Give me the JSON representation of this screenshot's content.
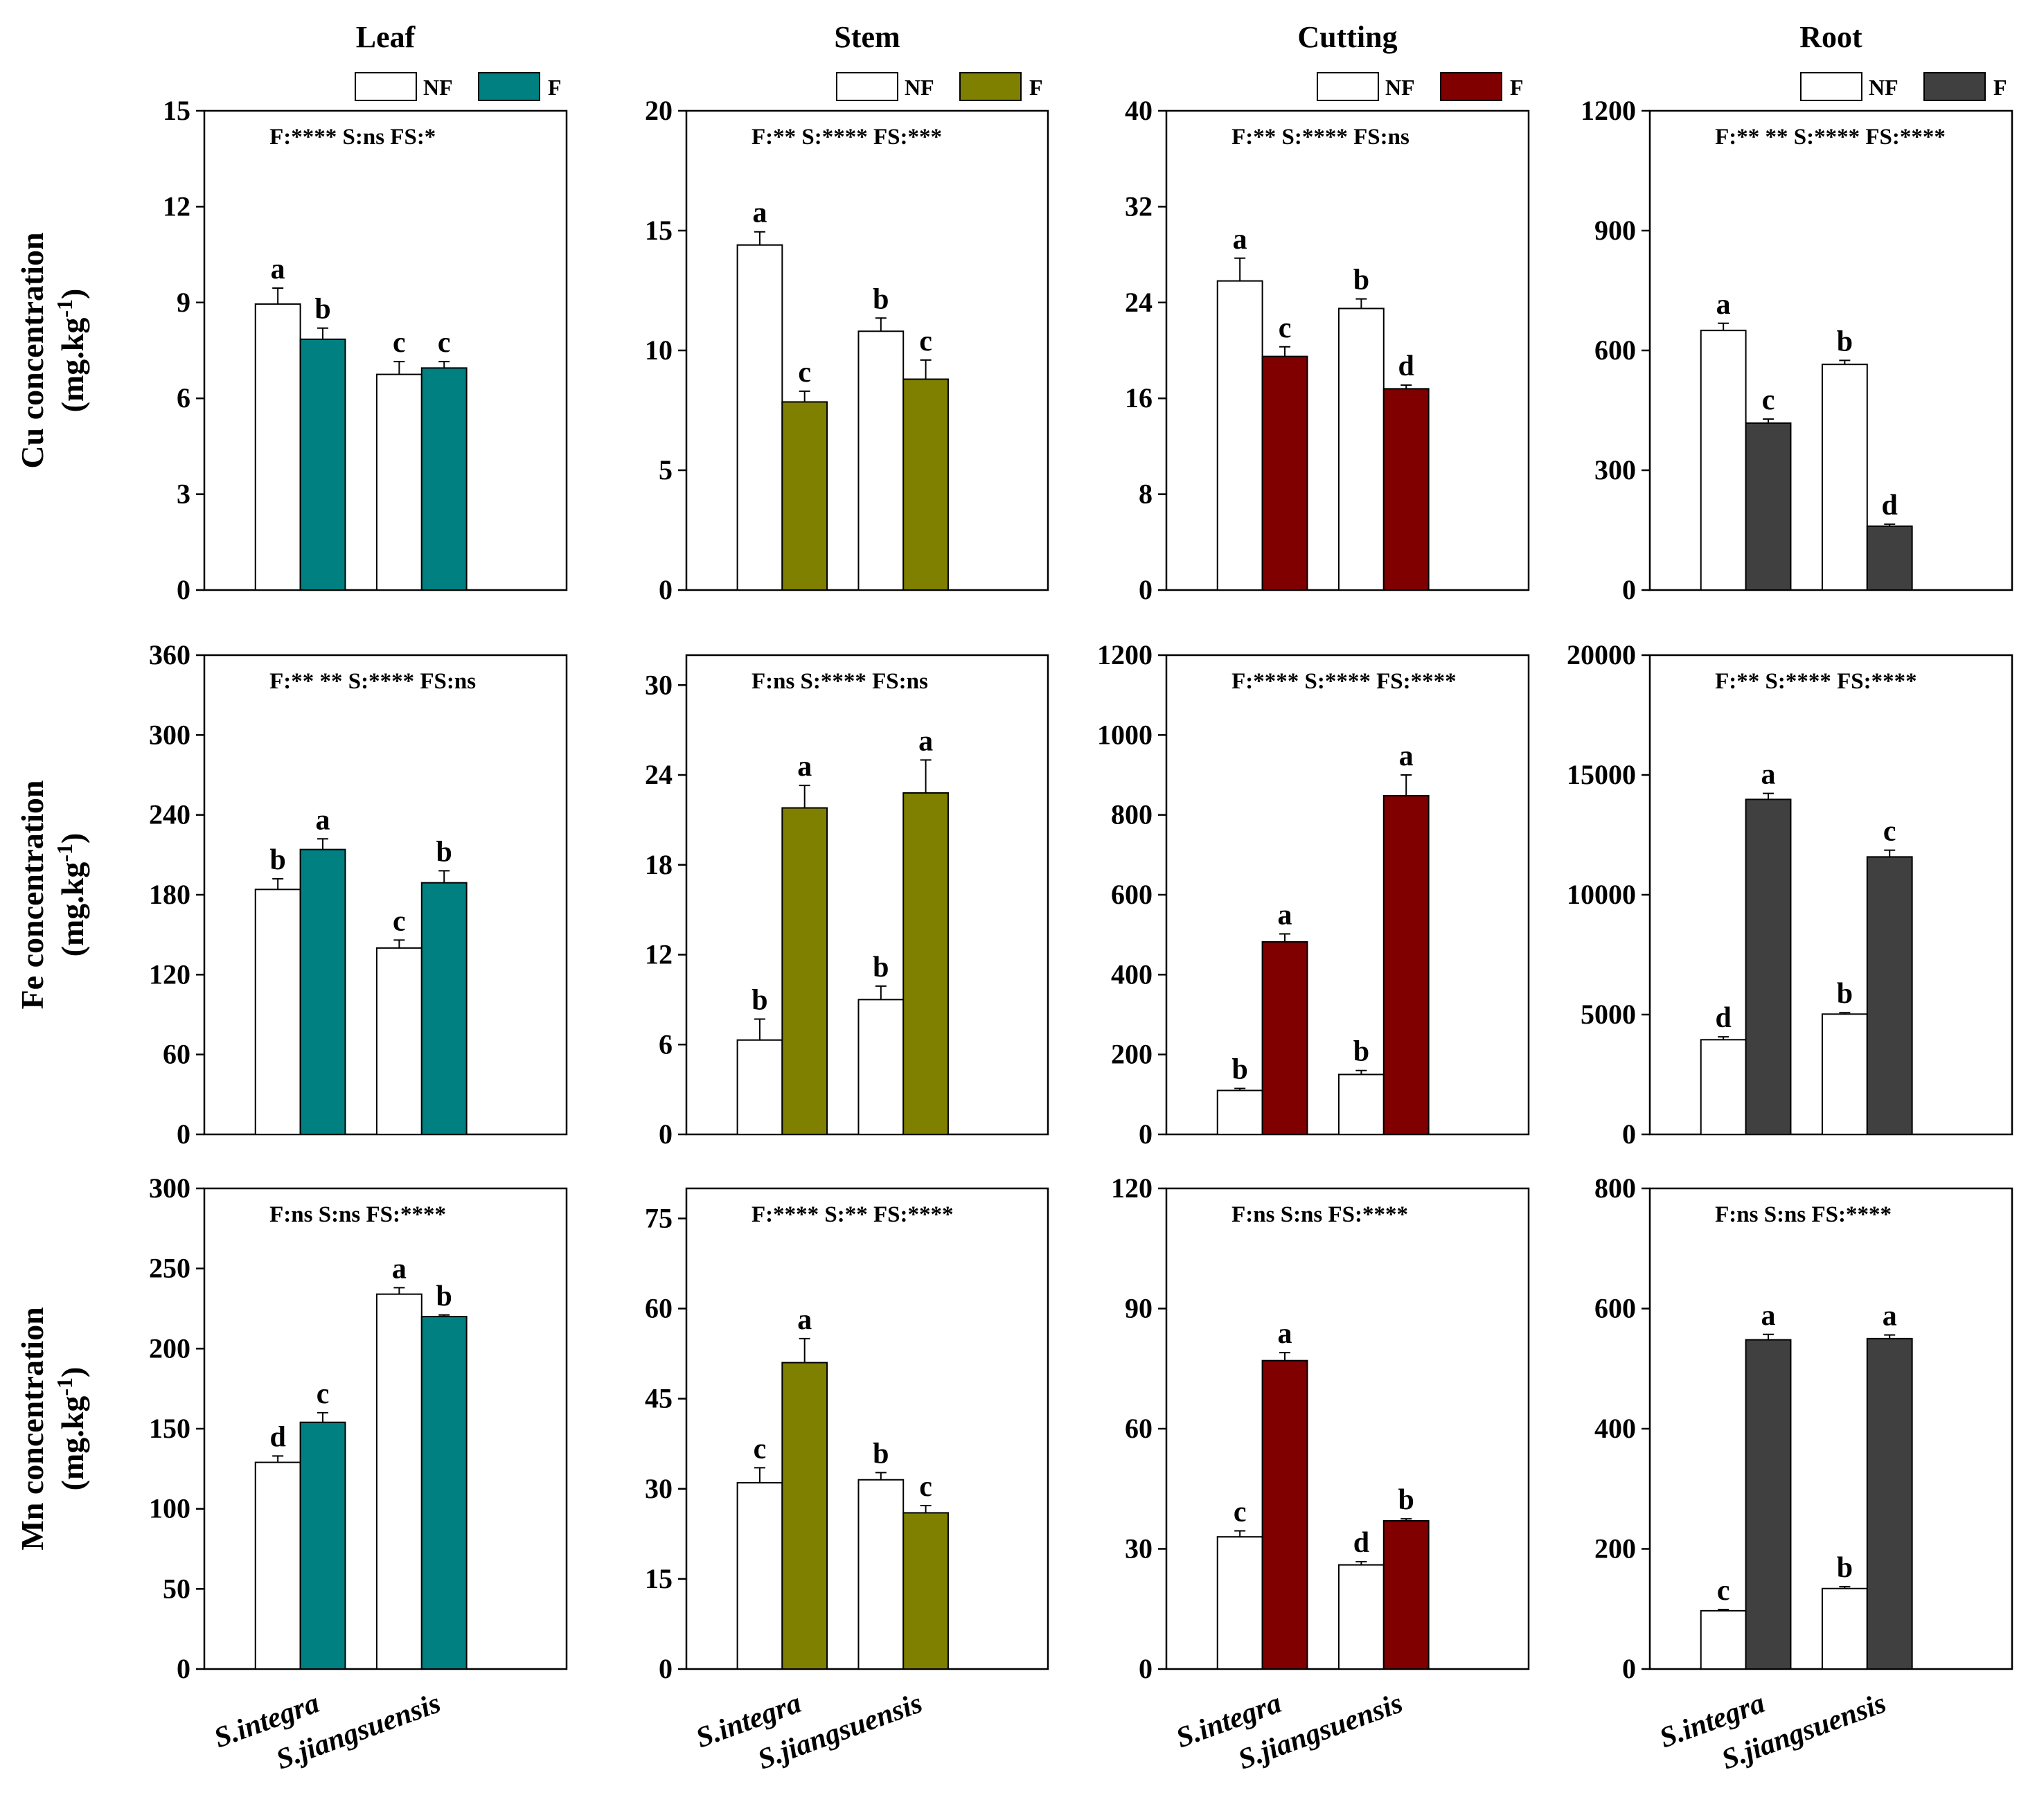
{
  "figure": {
    "columns": [
      "Leaf",
      "Stem",
      "Cutting",
      "Root"
    ],
    "row_labels": [
      {
        "element": "Cu",
        "line1": "Cu concentration",
        "line2": "(mg.kg",
        "sup": "-1",
        "close": ")"
      },
      {
        "element": "Fe",
        "line1": "Fe concentration",
        "line2": "(mg.kg",
        "sup": "-1",
        "close": ")"
      },
      {
        "element": "Mn",
        "line1": "Mn concentration",
        "line2": "(mg.kg",
        "sup": "-1",
        "close": ")"
      }
    ],
    "species": [
      "S.integra",
      "S.jiangsuensis"
    ],
    "legend": {
      "nf": "NF",
      "f": "F"
    },
    "colors": {
      "Leaf": "#008080",
      "Stem": "#808000",
      "Cutting": "#800000",
      "Root": "#404040",
      "nf": "#ffffff"
    }
  },
  "chart_data": [
    {
      "type": "bar",
      "row": "Cu",
      "column": "Leaf",
      "categories": [
        "S.integra",
        "S.jiangsuensis"
      ],
      "ylim": [
        0,
        15
      ],
      "yticks": [
        0,
        3,
        6,
        9,
        12,
        15
      ],
      "stat": "F:****  S:ns   FS:*",
      "series": [
        {
          "name": "NF",
          "values": [
            8.95,
            6.75
          ],
          "errors": [
            0.5,
            0.4
          ],
          "letters": [
            "a",
            "c"
          ]
        },
        {
          "name": "F",
          "values": [
            7.85,
            6.95
          ],
          "errors": [
            0.35,
            0.2
          ],
          "letters": [
            "b",
            "c"
          ]
        }
      ]
    },
    {
      "type": "bar",
      "row": "Cu",
      "column": "Stem",
      "categories": [
        "S.integra",
        "S.jiangsuensis"
      ],
      "ylim": [
        0,
        20
      ],
      "yticks": [
        0,
        5,
        10,
        15,
        20
      ],
      "stat": "F:**   S:****   FS:***",
      "series": [
        {
          "name": "NF",
          "values": [
            14.4,
            10.8
          ],
          "errors": [
            0.55,
            0.55
          ],
          "letters": [
            "a",
            "b"
          ]
        },
        {
          "name": "F",
          "values": [
            7.85,
            8.8
          ],
          "errors": [
            0.45,
            0.8
          ],
          "letters": [
            "c",
            "c"
          ]
        }
      ]
    },
    {
      "type": "bar",
      "row": "Cu",
      "column": "Cutting",
      "categories": [
        "S.integra",
        "S.jiangsuensis"
      ],
      "ylim": [
        0,
        40
      ],
      "yticks": [
        0,
        8,
        16,
        24,
        32,
        40
      ],
      "stat": "F:**   S:****   FS:ns",
      "series": [
        {
          "name": "NF",
          "values": [
            25.8,
            23.5
          ],
          "errors": [
            1.9,
            0.8
          ],
          "letters": [
            "a",
            "b"
          ]
        },
        {
          "name": "F",
          "values": [
            19.5,
            16.8
          ],
          "errors": [
            0.8,
            0.3
          ],
          "letters": [
            "c",
            "d"
          ]
        }
      ]
    },
    {
      "type": "bar",
      "row": "Cu",
      "column": "Root",
      "categories": [
        "S.integra",
        "S.jiangsuensis"
      ],
      "ylim": [
        0,
        1200
      ],
      "yticks": [
        0,
        300,
        600,
        900,
        1200
      ],
      "stat": "F:** ** S:****   FS:****",
      "series": [
        {
          "name": "NF",
          "values": [
            650,
            565
          ],
          "errors": [
            18,
            10
          ],
          "letters": [
            "a",
            "b"
          ]
        },
        {
          "name": "F",
          "values": [
            418,
            160
          ],
          "errors": [
            10,
            5
          ],
          "letters": [
            "c",
            "d"
          ]
        }
      ]
    },
    {
      "type": "bar",
      "row": "Fe",
      "column": "Leaf",
      "categories": [
        "S.integra",
        "S.jiangsuensis"
      ],
      "ylim": [
        0,
        360
      ],
      "yticks": [
        0,
        60,
        120,
        180,
        240,
        300,
        360
      ],
      "stat": "F:** ** S:****   FS:ns",
      "series": [
        {
          "name": "NF",
          "values": [
            184,
            140
          ],
          "errors": [
            8,
            6
          ],
          "letters": [
            "b",
            "c"
          ]
        },
        {
          "name": "F",
          "values": [
            214,
            189
          ],
          "errors": [
            8,
            9
          ],
          "letters": [
            "a",
            "b"
          ]
        }
      ]
    },
    {
      "type": "bar",
      "row": "Fe",
      "column": "Stem",
      "categories": [
        "S.integra",
        "S.jiangsuensis"
      ],
      "ylim": [
        0,
        32
      ],
      "yticks": [
        0,
        6,
        12,
        18,
        24,
        30
      ],
      "stat": "F:ns S:****  FS:ns",
      "series": [
        {
          "name": "NF",
          "values": [
            6.3,
            9.0
          ],
          "errors": [
            1.4,
            0.9
          ],
          "letters": [
            "b",
            "b"
          ]
        },
        {
          "name": "F",
          "values": [
            21.8,
            22.8
          ],
          "errors": [
            1.5,
            2.2
          ],
          "letters": [
            "a",
            "a"
          ]
        }
      ]
    },
    {
      "type": "bar",
      "row": "Fe",
      "column": "Cutting",
      "categories": [
        "S.integra",
        "S.jiangsuensis"
      ],
      "ylim": [
        0,
        1200
      ],
      "yticks": [
        0,
        200,
        400,
        600,
        800,
        1000,
        1200
      ],
      "stat": "F:**** S:****   FS:****",
      "series": [
        {
          "name": "NF",
          "values": [
            110,
            150
          ],
          "errors": [
            5,
            10
          ],
          "letters": [
            "b",
            "b"
          ]
        },
        {
          "name": "F",
          "values": [
            482,
            848
          ],
          "errors": [
            20,
            52
          ],
          "letters": [
            "a",
            "a"
          ]
        }
      ]
    },
    {
      "type": "bar",
      "row": "Fe",
      "column": "Root",
      "categories": [
        "S.integra",
        "S.jiangsuensis"
      ],
      "ylim": [
        0,
        20000
      ],
      "yticks": [
        0,
        5000,
        10000,
        15000,
        20000
      ],
      "stat": "F:** S:****   FS:****",
      "series": [
        {
          "name": "NF",
          "values": [
            3950,
            5020
          ],
          "errors": [
            120,
            60
          ],
          "letters": [
            "d",
            "b"
          ]
        },
        {
          "name": "F",
          "values": [
            13980,
            11580
          ],
          "errors": [
            250,
            280
          ],
          "letters": [
            "a",
            "c"
          ]
        }
      ]
    },
    {
      "type": "bar",
      "row": "Mn",
      "column": "Leaf",
      "categories": [
        "S.integra",
        "S.jiangsuensis"
      ],
      "ylim": [
        0,
        300
      ],
      "yticks": [
        0,
        50,
        100,
        150,
        200,
        250,
        300
      ],
      "stat": "F:ns S:ns   FS:****",
      "series": [
        {
          "name": "NF",
          "values": [
            129,
            234
          ],
          "errors": [
            4,
            4
          ],
          "letters": [
            "d",
            "a"
          ]
        },
        {
          "name": "F",
          "values": [
            154,
            220
          ],
          "errors": [
            6,
            1
          ],
          "letters": [
            "c",
            "b"
          ]
        }
      ]
    },
    {
      "type": "bar",
      "row": "Mn",
      "column": "Stem",
      "categories": [
        "S.integra",
        "S.jiangsuensis"
      ],
      "ylim": [
        0,
        80
      ],
      "yticks": [
        0,
        15,
        30,
        45,
        60,
        75
      ],
      "stat": "F:**** S:**   FS:****",
      "series": [
        {
          "name": "NF",
          "values": [
            31,
            31.5
          ],
          "errors": [
            2.5,
            1.2
          ],
          "letters": [
            "c",
            "b"
          ]
        },
        {
          "name": "F",
          "values": [
            51,
            26
          ],
          "errors": [
            4,
            1.2
          ],
          "letters": [
            "a",
            "c"
          ]
        }
      ]
    },
    {
      "type": "bar",
      "row": "Mn",
      "column": "Cutting",
      "categories": [
        "S.integra",
        "S.jiangsuensis"
      ],
      "ylim": [
        0,
        120
      ],
      "yticks": [
        0,
        30,
        60,
        90,
        120
      ],
      "stat": "F:ns S:ns   FS:****",
      "series": [
        {
          "name": "NF",
          "values": [
            33,
            26
          ],
          "errors": [
            1.5,
            0.8
          ],
          "letters": [
            "c",
            "d"
          ]
        },
        {
          "name": "F",
          "values": [
            77,
            37
          ],
          "errors": [
            2,
            0.5
          ],
          "letters": [
            "a",
            "b"
          ]
        }
      ]
    },
    {
      "type": "bar",
      "row": "Mn",
      "column": "Root",
      "categories": [
        "S.integra",
        "S.jiangsuensis"
      ],
      "ylim": [
        0,
        800
      ],
      "yticks": [
        0,
        200,
        400,
        600,
        800
      ],
      "stat": "F:ns S:ns   FS:****",
      "series": [
        {
          "name": "NF",
          "values": [
            97,
            134
          ],
          "errors": [
            2,
            3
          ],
          "letters": [
            "c",
            "b"
          ]
        },
        {
          "name": "F",
          "values": [
            548,
            550
          ],
          "errors": [
            9,
            6
          ],
          "letters": [
            "a",
            "a"
          ]
        }
      ]
    }
  ]
}
